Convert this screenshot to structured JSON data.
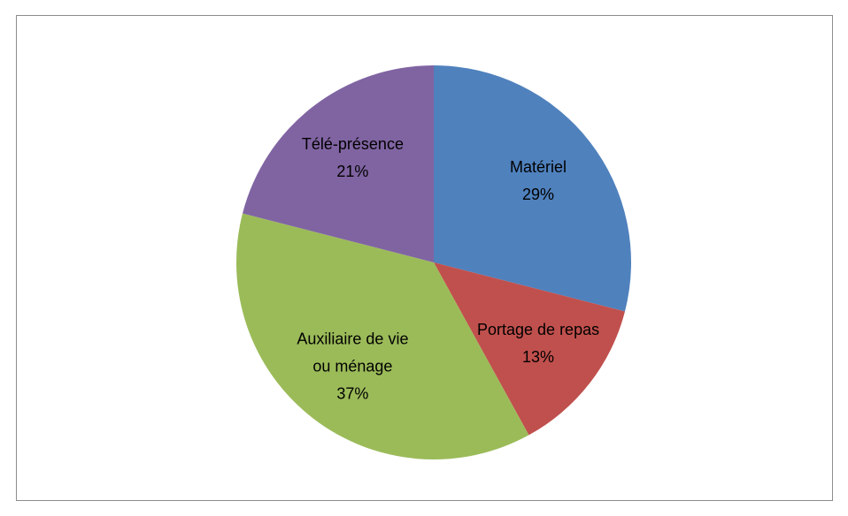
{
  "chart_data": {
    "type": "pie",
    "categories": [
      "Matériel",
      "Portage de repas",
      "Auxiliaire de vie ou ménage",
      "Télé-présence"
    ],
    "values": [
      29,
      13,
      37,
      21
    ],
    "value_labels": [
      "29%",
      "13%",
      "37%",
      "21%"
    ],
    "colors": [
      "#4f81bd",
      "#c0504d",
      "#9bbb59",
      "#8064a2"
    ]
  }
}
